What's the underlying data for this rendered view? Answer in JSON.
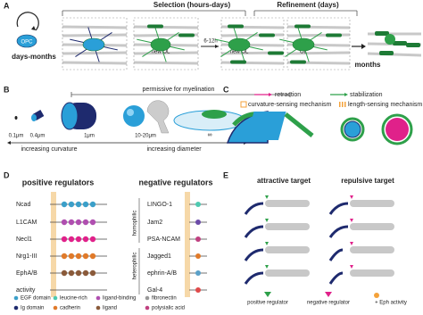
{
  "panel_a": {
    "label": "A",
    "selection": "Selection (hours-days)",
    "refinement": "Refinement (days)",
    "opc": "OPC",
    "days_months": "days-months",
    "new_ol_1": "new OL",
    "time": "6-12h",
    "new_ol_2": "new OL",
    "ol": "OL",
    "months": "months"
  },
  "panel_b": {
    "label": "B",
    "permissive": "permissive for myelination",
    "sizes": [
      "0.1μm",
      "0.4μm",
      "1μm",
      "10-20μm",
      "∞"
    ],
    "curvature": "increasing curvature",
    "diameter": "increasing diameter"
  },
  "panel_c": {
    "label": "C",
    "retraction": "retraction",
    "stabilization": "stabilization",
    "curvature_sensing": "curvature-sensing mechanism",
    "length_sensing": "length-sensing mechanism"
  },
  "panel_d": {
    "label": "D",
    "positive_title": "positive regulators",
    "negative_title": "negative regulators",
    "positive": [
      "Ncad",
      "L1CAM",
      "Necl1",
      "Nrg1-III",
      "EphA/B",
      "activity"
    ],
    "negative": [
      "LINGO-1",
      "Jam2",
      "PSA-NCAM",
      "Jagged1",
      "ephrin-A/B",
      "Gal-4"
    ],
    "homophilic": "homophilic",
    "heterophilic": "heterophilic",
    "legend": [
      "EGF domain",
      "leucine-rich",
      "ligand-binding",
      "fibronectin",
      "Ig domain",
      "cadherin",
      "ligand",
      "polysialic acid"
    ]
  },
  "panel_e": {
    "label": "E",
    "attractive": "attractive target",
    "repulsive": "repulsive target",
    "legend": [
      "positive regulator",
      "negative regulator",
      "+ Eph activity"
    ]
  }
}
